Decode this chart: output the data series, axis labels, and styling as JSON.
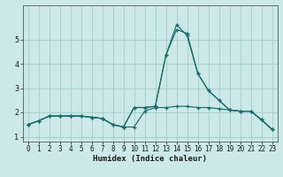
{
  "title": "",
  "xlabel": "Humidex (Indice chaleur)",
  "ylabel": "",
  "background_color": "#cce8e8",
  "grid_color": "#aad0d0",
  "line_color": "#1a6b6b",
  "x": [
    0,
    1,
    2,
    3,
    4,
    5,
    6,
    7,
    8,
    9,
    10,
    11,
    12,
    13,
    14,
    15,
    16,
    17,
    18,
    19,
    20,
    21,
    22,
    23
  ],
  "series": [
    [
      1.5,
      1.65,
      1.85,
      1.85,
      1.85,
      1.85,
      1.8,
      1.75,
      1.5,
      1.4,
      1.4,
      2.05,
      2.2,
      2.2,
      2.25,
      2.25,
      2.2,
      2.2,
      2.15,
      2.1,
      2.05,
      2.05,
      1.7,
      1.3
    ],
    [
      1.5,
      1.65,
      1.85,
      1.85,
      1.85,
      1.85,
      1.8,
      1.75,
      1.5,
      1.4,
      2.2,
      2.2,
      2.25,
      4.35,
      5.4,
      5.25,
      3.6,
      2.9,
      2.5,
      2.1,
      2.05,
      2.05,
      1.7,
      1.3
    ],
    [
      1.5,
      1.65,
      1.85,
      1.85,
      1.85,
      1.85,
      1.8,
      1.75,
      1.5,
      1.4,
      2.2,
      2.2,
      2.25,
      4.35,
      5.6,
      5.15,
      3.6,
      2.9,
      2.5,
      2.1,
      2.05,
      2.05,
      1.7,
      1.3
    ]
  ],
  "xlim": [
    -0.5,
    23.5
  ],
  "ylim": [
    0.8,
    6.4
  ],
  "yticks": [
    1,
    2,
    3,
    4,
    5
  ],
  "xticks": [
    0,
    1,
    2,
    3,
    4,
    5,
    6,
    7,
    8,
    9,
    10,
    11,
    12,
    13,
    14,
    15,
    16,
    17,
    18,
    19,
    20,
    21,
    22,
    23
  ]
}
